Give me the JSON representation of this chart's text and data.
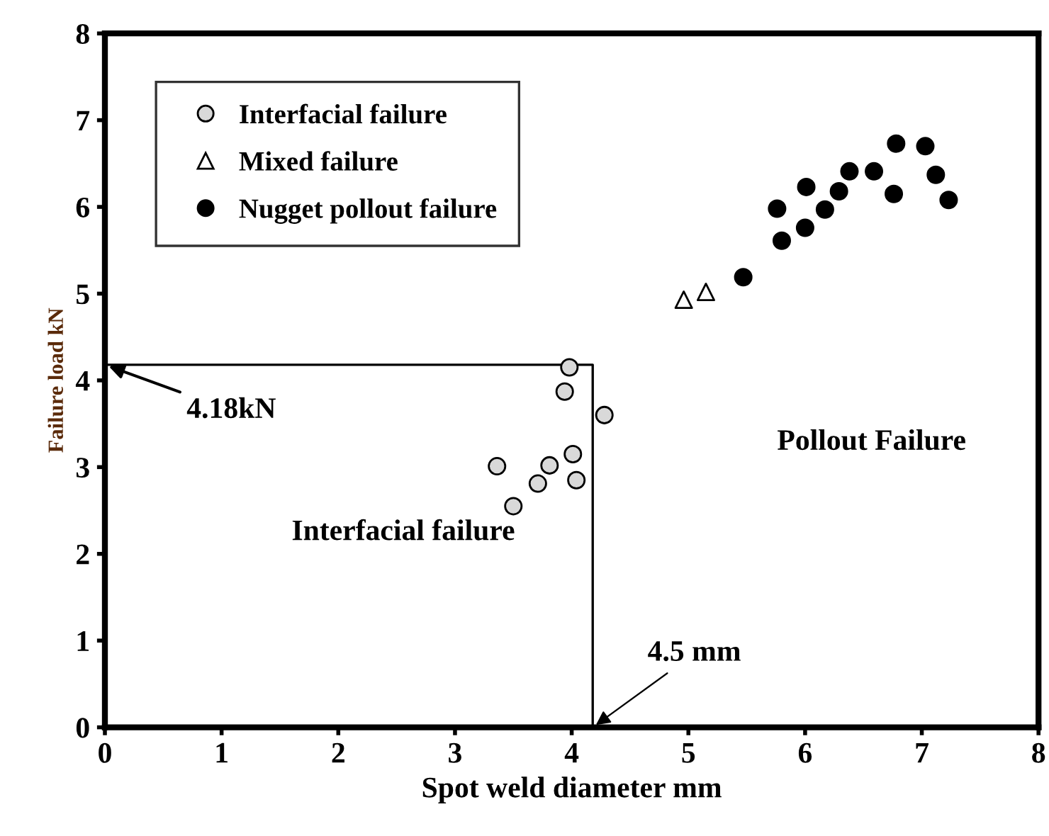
{
  "chart_data": {
    "type": "scatter",
    "xlabel": "Spot weld diameter mm",
    "ylabel": "Failure load kN",
    "xlim": [
      0,
      8
    ],
    "ylim": [
      0,
      8
    ],
    "xticks": [
      0,
      1,
      2,
      3,
      4,
      5,
      6,
      7,
      8
    ],
    "yticks": [
      0,
      1,
      2,
      3,
      4,
      5,
      6,
      7,
      8
    ],
    "grid": false,
    "legend": "top left",
    "series": [
      {
        "type": "line",
        "color": "#000000",
        "x": [
          0,
          4.18,
          4.18
        ],
        "values": [
          4.18,
          4.18,
          0
        ],
        "marker": "none",
        "line_style": "solid"
      },
      {
        "name": "Interfacial failure",
        "color": "#d9d9d9",
        "marker": "circle",
        "x": [
          3.98,
          3.94,
          4.28,
          3.36,
          3.81,
          4.01,
          3.71,
          4.04,
          3.5
        ],
        "values": [
          4.15,
          3.87,
          3.6,
          3.01,
          3.02,
          3.15,
          2.81,
          2.85,
          2.55
        ]
      },
      {
        "name": "Mixed failure",
        "color": "#ffffff",
        "marker": "triangle",
        "x": [
          4.96,
          5.15
        ],
        "values": [
          4.93,
          5.02
        ]
      },
      {
        "name": "Nugget pollout failure",
        "color": "#000000",
        "marker": "circle",
        "x": [
          5.47,
          5.76,
          5.8,
          6.0,
          6.01,
          6.17,
          6.29,
          6.38,
          6.59,
          6.76,
          6.78,
          7.03,
          7.12,
          7.23
        ],
        "values": [
          5.19,
          5.98,
          5.61,
          5.76,
          6.23,
          5.97,
          6.18,
          6.41,
          6.41,
          6.15,
          6.73,
          6.7,
          6.37,
          6.08
        ]
      }
    ],
    "annotations": [
      {
        "text": "4.18kN",
        "x": 0,
        "y": 4.18
      },
      {
        "text": "4.5 mm",
        "x": 4.18,
        "y": 0
      },
      "Interfacial failure",
      "Pollout Failure"
    ]
  }
}
